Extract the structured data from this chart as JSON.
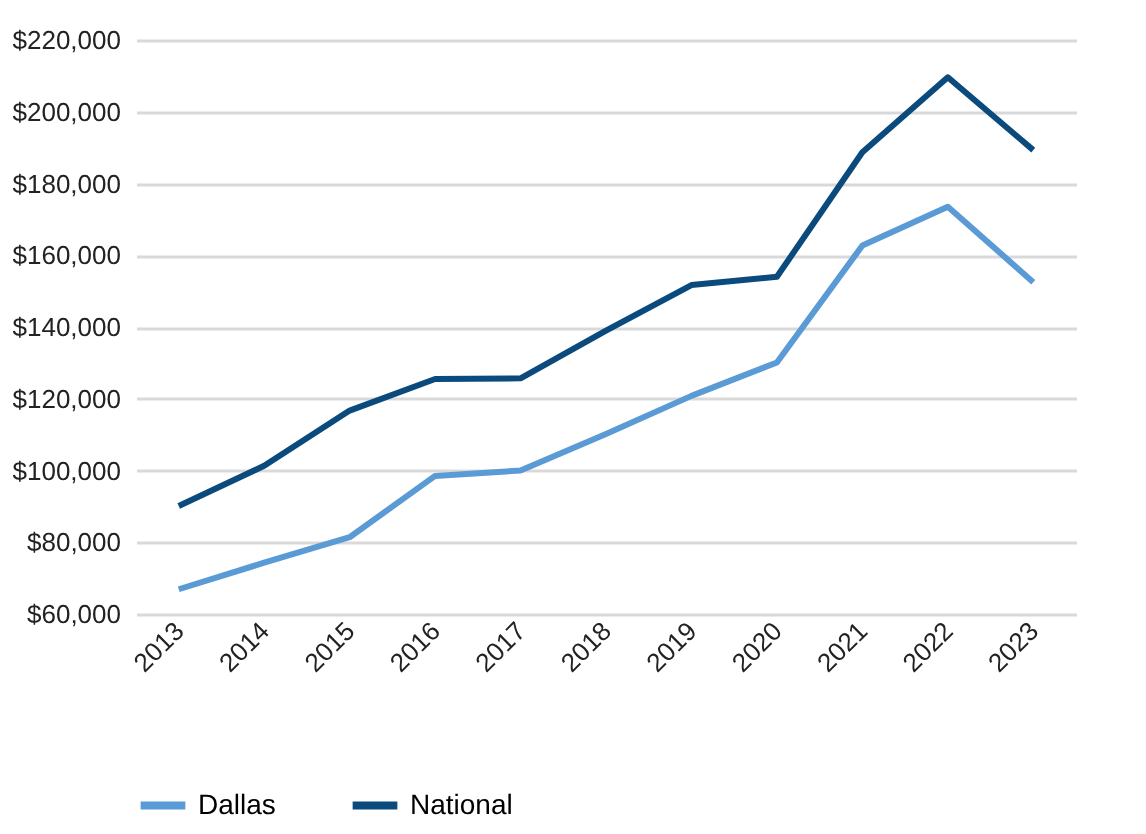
{
  "chart_data": {
    "type": "line",
    "categories": [
      "2013",
      "2014",
      "2015",
      "2016",
      "2017",
      "2018",
      "2019",
      "2020",
      "2021",
      "2022",
      "2023"
    ],
    "series": [
      {
        "name": "Dallas",
        "color": "#5b9bd5",
        "values": [
          66900,
          74300,
          81400,
          98500,
          100000,
          110200,
          120800,
          130100,
          162700,
          173500,
          152500
        ]
      },
      {
        "name": "National",
        "color": "#0b4a7d",
        "values": [
          90100,
          101300,
          116700,
          125500,
          125700,
          139000,
          151700,
          154000,
          188700,
          209600,
          189300
        ]
      }
    ],
    "ylim": [
      60000,
      220000
    ],
    "yticks": [
      {
        "value": 60000,
        "label": "$60,000"
      },
      {
        "value": 80000,
        "label": "$80,000"
      },
      {
        "value": 100000,
        "label": "$100,000"
      },
      {
        "value": 120000,
        "label": "$120,000"
      },
      {
        "value": 140000,
        "label": "$140,000"
      },
      {
        "value": 160000,
        "label": "$160,000"
      },
      {
        "value": 180000,
        "label": "$180,000"
      },
      {
        "value": 200000,
        "label": "$200,000"
      },
      {
        "value": 220000,
        "label": "$220,000"
      }
    ],
    "grid": "y",
    "legend": "bottom",
    "marker": "none",
    "line_style": "solid"
  }
}
